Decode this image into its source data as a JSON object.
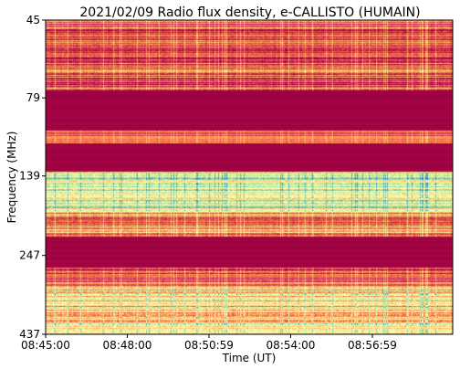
{
  "chart_data": {
    "type": "heatmap",
    "title": "2021/02/09  Radio flux density, e-CALLISTO (HUMAIN)",
    "xlabel": "Time (UT)",
    "ylabel": "Frequency (MHz)",
    "x_ticks": [
      "08:45:00",
      "08:48:00",
      "08:50:59",
      "08:54:00",
      "08:56:59"
    ],
    "y_ticks": [
      "45",
      "79",
      "139",
      "247",
      "437"
    ],
    "y_scale": "log",
    "y_direction": "frequency increases downward",
    "colormap": [
      "#9e0142",
      "#d53e4f",
      "#f46d43",
      "#fdae61",
      "#fee08b",
      "#ffffbf",
      "#e6f598",
      "#abdda4",
      "#66c2a5",
      "#3288bd"
    ],
    "bands": [
      {
        "from_mhz": 45,
        "to_mhz": 75,
        "level": 0.18,
        "variability": 0.22
      },
      {
        "from_mhz": 75,
        "to_mhz": 100,
        "level": 0.0,
        "variability": 0.02
      },
      {
        "from_mhz": 100,
        "to_mhz": 110,
        "level": 0.2,
        "variability": 0.15
      },
      {
        "from_mhz": 110,
        "to_mhz": 135,
        "level": 0.0,
        "variability": 0.02
      },
      {
        "from_mhz": 135,
        "to_mhz": 180,
        "level": 0.62,
        "variability": 0.3
      },
      {
        "from_mhz": 180,
        "to_mhz": 215,
        "level": 0.3,
        "variability": 0.25
      },
      {
        "from_mhz": 215,
        "to_mhz": 270,
        "level": 0.0,
        "variability": 0.02
      },
      {
        "from_mhz": 270,
        "to_mhz": 310,
        "level": 0.2,
        "variability": 0.2
      },
      {
        "from_mhz": 310,
        "to_mhz": 437,
        "level": 0.48,
        "variability": 0.35
      }
    ]
  }
}
